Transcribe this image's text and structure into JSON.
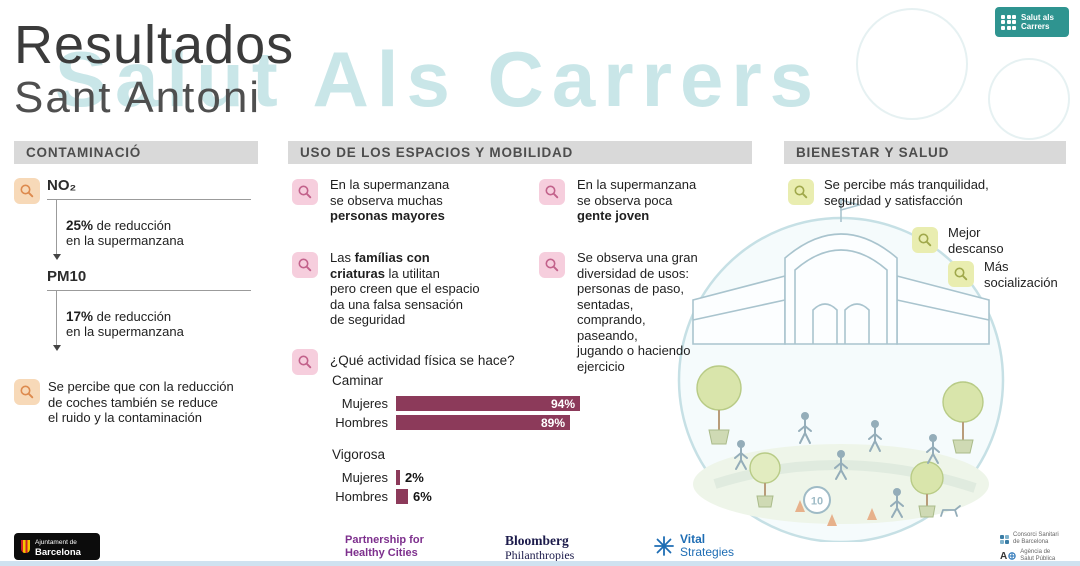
{
  "page": {
    "title_line1": "Resultados",
    "title_line2": "Sant Antoni",
    "watermark": "Salut Als Carrers"
  },
  "brand": {
    "name_line1": "Salut als",
    "name_line2": "Carrers",
    "teal": "#2f9490"
  },
  "contaminacio": {
    "header": "CONTAMINACIÓ",
    "metrics": [
      {
        "label": "NO₂",
        "value": "25%",
        "rest": " de reducción\nen la supermanzana"
      },
      {
        "label": "PM10",
        "value": "17%",
        "rest": " de reducción\nen la supermanzana"
      }
    ],
    "note": "Se percibe que con la reducción\nde coches también se reduce\nel ruido y la contaminación"
  },
  "uso": {
    "header": "USO DE LOS ESPACIOS Y MOBILIDAD",
    "observations": [
      {
        "pre": "En la supermanzana\nse observa muchas\n",
        "bold": "personas mayores",
        "post": ""
      },
      {
        "pre": "En la supermanzana\nse observa poca\n",
        "bold": "gente joven",
        "post": ""
      },
      {
        "pre": "Las ",
        "bold": "famílias con\ncriaturas",
        "post": " la utilitan\npero creen que el espacio\nda una falsa sensación\nde seguridad"
      },
      {
        "pre": "Se observa una gran\ndiversidad de usos:\npersonas de paso,\nsentadas,\ncomprando,\npaseando,\njugando o haciendo\nejercicio",
        "bold": "",
        "post": ""
      }
    ],
    "activity_question": "¿Qué actividad física se hace?",
    "caminar_label": "Caminar",
    "vigorosa_label": "Vigorosa",
    "caminar_rows": [
      {
        "label": "Mujeres",
        "value": "94%"
      },
      {
        "label": "Hombres",
        "value": "89%"
      }
    ],
    "vigorosa_rows": [
      {
        "label": "Mujeres",
        "value": "2%"
      },
      {
        "label": "Hombres",
        "value": "6%"
      }
    ]
  },
  "bienestar": {
    "header": "BIENESTAR Y SALUD",
    "items": [
      "Se percibe más tranquilidad,\nseguridad y satisfacción",
      "Mejor\ndescanso",
      "Más\nsocialización"
    ]
  },
  "illustration": {
    "speed_sign": "10"
  },
  "footer": {
    "ajuntament_line1": "Ajuntament de",
    "ajuntament_line2": "Barcelona",
    "partnership_line1": "Partnership for",
    "partnership_line2": "Healthy Cities",
    "bloomberg_line1": "Bloomberg",
    "bloomberg_line2": "Philanthropies",
    "vital_line1": "Vital",
    "vital_line2": "Strategies",
    "consorci_line1": "Consorci Sanitari",
    "consorci_line2": "de Barcelona",
    "agencia_mark": "A",
    "agencia_line1": "Agència de",
    "agencia_line2": "Salut Pública"
  },
  "chart_data": [
    {
      "type": "bar",
      "title": "¿Qué actividad física se hace?",
      "orientation": "horizontal",
      "categories": [
        "Mujeres",
        "Hombres"
      ],
      "series": [
        {
          "name": "Caminar",
          "values": [
            94,
            89
          ]
        },
        {
          "name": "Vigorosa",
          "values": [
            2,
            6
          ]
        }
      ],
      "unit": "%",
      "bar_color": "#8c3a5a",
      "xlim": [
        0,
        100
      ],
      "value_labels": true
    },
    {
      "type": "bar",
      "title": "Contaminació: reducción en la supermanzana",
      "categories": [
        "NO₂",
        "PM10"
      ],
      "values": [
        25,
        17
      ],
      "unit": "%",
      "ylabel": "de reducción en la supermanzana"
    }
  ]
}
